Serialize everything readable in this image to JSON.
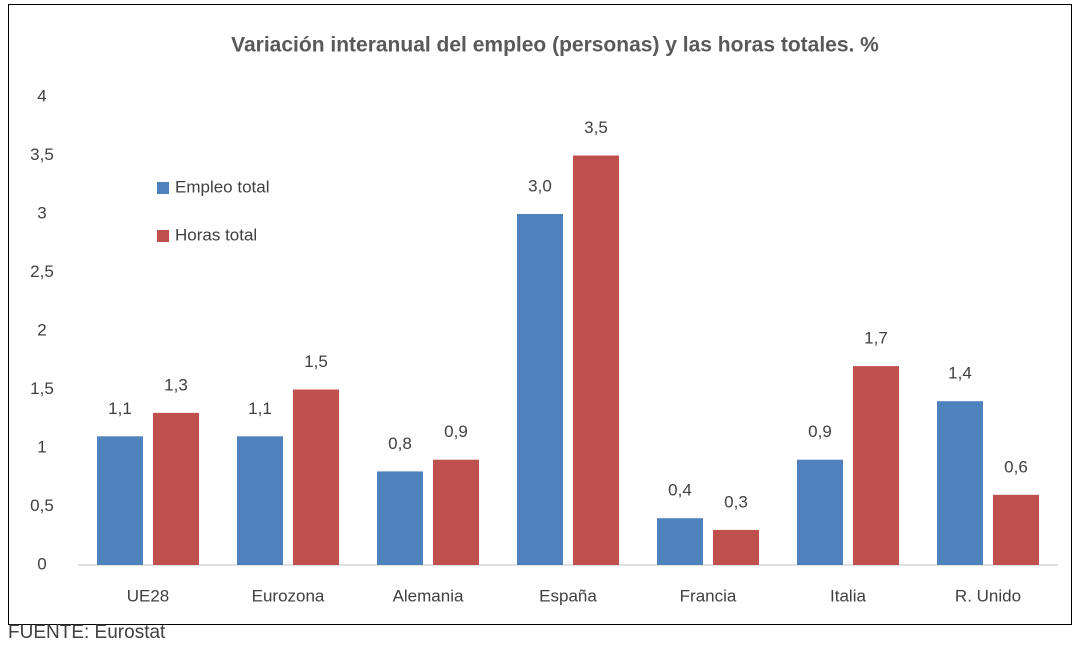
{
  "chart_data": {
    "type": "bar",
    "title": "Variación interanual del empleo (personas) y las horas totales. %",
    "categories": [
      "UE28",
      "Eurozona",
      "Alemania",
      "España",
      "Francia",
      "Italia",
      "R. Unido"
    ],
    "series": [
      {
        "name": "Empleo total",
        "color": "#4f81bd",
        "values": [
          1.1,
          1.1,
          0.8,
          3.0,
          0.4,
          0.9,
          1.4
        ],
        "value_labels": [
          "1,1",
          "1,1",
          "0,8",
          "3,0",
          "0,4",
          "0,9",
          "1,4"
        ]
      },
      {
        "name": "Horas total",
        "color": "#c0504d",
        "values": [
          1.3,
          1.5,
          0.9,
          3.5,
          0.3,
          1.7,
          0.6
        ],
        "value_labels": [
          "1,3",
          "1,5",
          "0,9",
          "3,5",
          "0,3",
          "1,7",
          "0,6"
        ]
      }
    ],
    "ylim": [
      0,
      4
    ],
    "yticks": [
      0,
      {
        "value": 0.5,
        "label": "0,5"
      },
      1,
      {
        "value": 1.5,
        "label": "1,5"
      },
      2,
      {
        "value": 2.5,
        "label": "2,5"
      },
      3,
      {
        "value": 3.5,
        "label": "3,5"
      },
      4
    ],
    "grid": false,
    "legend": "upper left",
    "source": "FUENTE: Eurostat"
  }
}
